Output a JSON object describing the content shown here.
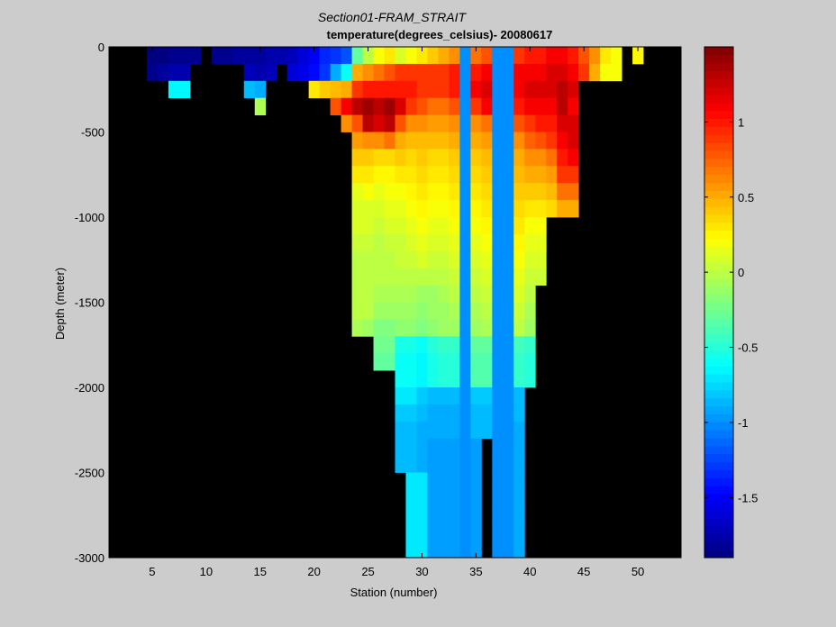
{
  "chart_data": [
    {
      "type": "heatmap",
      "title": "Section01-FRAM_STRAIT",
      "subtitle": "temperature(degrees_celsius)- 20080617",
      "xlabel": "Station (number)",
      "ylabel": "Depth (meter)",
      "xlim": [
        1,
        54
      ],
      "ylim": [
        -3000,
        0
      ],
      "x_ticks": [
        5,
        10,
        15,
        20,
        25,
        30,
        35,
        40,
        45,
        50
      ],
      "y_ticks": [
        0,
        -500,
        -1000,
        -1500,
        -2000,
        -2500,
        -3000
      ],
      "x_tick_labels": [
        "5",
        "10",
        "15",
        "20",
        "25",
        "30",
        "35",
        "40",
        "45",
        "50"
      ],
      "y_tick_labels": [
        "0",
        "-500",
        "-1000",
        "-1500",
        "-2000",
        "-2500",
        "-3000"
      ],
      "background_color": "#000000",
      "cell_depth_step": 100,
      "colorscale": "jet",
      "note_units": "°C",
      "stations": [
        {
          "x": 5,
          "t": [
            -1.9,
            -1.85
          ]
        },
        {
          "x": 6,
          "t": [
            -1.9,
            -1.8
          ]
        },
        {
          "x": 7,
          "t": [
            -1.85,
            -1.75,
            -0.65
          ]
        },
        {
          "x": 8,
          "t": [
            -1.85,
            -1.75,
            -0.65
          ]
        },
        {
          "x": 9,
          "t": [
            -1.85
          ]
        },
        {
          "x": 11,
          "t": [
            -1.85
          ]
        },
        {
          "x": 12,
          "t": [
            -1.85
          ]
        },
        {
          "x": 13,
          "t": [
            -1.8
          ]
        },
        {
          "x": 14,
          "t": [
            -1.8,
            -1.7,
            -0.85
          ]
        },
        {
          "x": 15,
          "t": [
            -1.8,
            -1.75,
            -0.9,
            -0.05
          ]
        },
        {
          "x": 16,
          "t": [
            -1.75,
            -1.7
          ]
        },
        {
          "x": 17,
          "t": [
            -1.75
          ]
        },
        {
          "x": 18,
          "t": [
            -1.7,
            -1.6
          ]
        },
        {
          "x": 19,
          "t": [
            -1.6,
            -1.55
          ]
        },
        {
          "x": 20,
          "t": [
            -1.5,
            -1.45,
            0.3
          ]
        },
        {
          "x": 21,
          "t": [
            -1.35,
            -1.3,
            0.4
          ]
        },
        {
          "x": 22,
          "t": [
            -1.3,
            -0.9,
            0.45,
            0.8
          ]
        },
        {
          "x": 23,
          "t": [
            -1.2,
            -0.6,
            0.5,
            1.1,
            0.6
          ]
        },
        {
          "x": 24,
          "t": [
            -0.3,
            0.5,
            0.9,
            1.3,
            0.8,
            0.55,
            0.4,
            0.3,
            0.15,
            0.1,
            0.1,
            0.05,
            0.0,
            0.0,
            0.0,
            0.0,
            -0.05
          ]
        },
        {
          "x": 25,
          "t": [
            0.0,
            0.6,
            1.0,
            1.4,
            1.3,
            0.6,
            0.4,
            0.3,
            0.2,
            0.1,
            0.1,
            0.05,
            0.0,
            0.0,
            0.0,
            0.0,
            -0.1
          ]
        },
        {
          "x": 26,
          "t": [
            0.2,
            0.7,
            1.0,
            1.3,
            1.2,
            0.6,
            0.35,
            0.25,
            0.15,
            0.1,
            0.05,
            0.0,
            0.0,
            0.0,
            -0.05,
            -0.1,
            -0.2,
            -0.25,
            -0.3
          ]
        },
        {
          "x": 27,
          "t": [
            0.3,
            0.8,
            1.0,
            1.4,
            1.3,
            0.7,
            0.35,
            0.25,
            0.2,
            0.15,
            0.1,
            0.05,
            0.0,
            0.0,
            -0.05,
            -0.1,
            -0.2,
            -0.25,
            -0.3
          ]
        },
        {
          "x": 28,
          "t": [
            0.1,
            0.9,
            1.0,
            1.2,
            0.8,
            0.5,
            0.4,
            0.3,
            0.2,
            0.15,
            0.1,
            0.05,
            0.05,
            0.0,
            -0.05,
            -0.1,
            -0.15,
            -0.55,
            -0.6,
            -0.6,
            -0.7,
            -0.8,
            -0.85,
            -0.85,
            -0.85
          ]
        },
        {
          "x": 29,
          "t": [
            0.2,
            0.9,
            1.0,
            0.9,
            0.6,
            0.45,
            0.35,
            0.3,
            0.25,
            0.2,
            0.15,
            0.1,
            0.05,
            0.0,
            -0.05,
            -0.1,
            -0.15,
            -0.55,
            -0.6,
            -0.6,
            -0.7,
            -0.8,
            -0.85,
            -0.85,
            -0.85,
            -0.7,
            -0.7,
            -0.7,
            -0.7,
            -0.7
          ]
        },
        {
          "x": 30,
          "t": [
            0.3,
            0.9,
            0.9,
            0.8,
            0.6,
            0.45,
            0.4,
            0.35,
            0.3,
            0.25,
            0.2,
            0.15,
            0.1,
            0.0,
            -0.1,
            -0.15,
            -0.2,
            -0.6,
            -0.65,
            -0.65,
            -0.8,
            -0.85,
            -0.9,
            -0.9,
            -0.9,
            -0.7,
            -0.7,
            -0.7,
            -0.7,
            -0.7
          ]
        },
        {
          "x": 31,
          "t": [
            0.4,
            0.9,
            0.9,
            0.7,
            0.55,
            0.45,
            0.35,
            0.3,
            0.25,
            0.2,
            0.15,
            0.1,
            0.05,
            0.0,
            -0.1,
            -0.1,
            -0.15,
            -0.5,
            -0.55,
            -0.55,
            -0.85,
            -0.9,
            -0.9,
            -0.95,
            -0.95,
            -0.95,
            -0.95,
            -0.95,
            -0.95,
            -0.95
          ]
        },
        {
          "x": 32,
          "t": [
            0.5,
            0.9,
            0.9,
            0.7,
            0.55,
            0.45,
            0.35,
            0.3,
            0.25,
            0.2,
            0.15,
            0.1,
            0.05,
            0.0,
            -0.05,
            -0.1,
            -0.1,
            -0.45,
            -0.5,
            -0.5,
            -0.85,
            -0.9,
            -0.9,
            -0.95,
            -0.95,
            -0.95,
            -0.95,
            -0.95,
            -0.95,
            -0.95
          ]
        },
        {
          "x": 33,
          "t": [
            0.6,
            1.0,
            1.0,
            0.8,
            0.6,
            0.5,
            0.4,
            0.35,
            0.3,
            0.25,
            0.2,
            0.15,
            0.1,
            0.05,
            0.0,
            -0.05,
            -0.1,
            -0.45,
            -0.5,
            -0.5,
            -0.85,
            -0.9,
            -0.9,
            -0.95,
            -0.95,
            -0.95,
            -0.95,
            -0.95,
            -0.95,
            -0.95
          ]
        },
        {
          "x": 34,
          "t": [
            -1.0,
            -1.0,
            -1.0,
            -1.0,
            -1.0,
            -1.0,
            -1.0,
            -1.0,
            -1.0,
            -1.0,
            -1.0,
            -1.0,
            -1.0,
            -1.0,
            -1.0,
            -1.0,
            -1.0,
            -1.0,
            -1.0,
            -1.0,
            -1.0,
            -1.0,
            -1.0,
            -1.0,
            -1.0,
            -1.0,
            -1.0,
            -1.0,
            -1.0,
            -1.0
          ]
        },
        {
          "x": 35,
          "t": [
            0.7,
            1.0,
            1.1,
            0.9,
            0.6,
            0.5,
            0.4,
            0.35,
            0.3,
            0.25,
            0.2,
            0.15,
            0.1,
            0.05,
            0.0,
            -0.05,
            -0.1,
            -0.3,
            -0.35,
            -0.35,
            -0.8,
            -0.85,
            -0.85,
            -0.95,
            -0.95,
            -0.95,
            -0.95,
            -0.95,
            -0.95,
            -0.95
          ]
        },
        {
          "x": 36,
          "t": [
            0.8,
            1.1,
            1.2,
            1.1,
            0.7,
            0.55,
            0.45,
            0.4,
            0.35,
            0.3,
            0.25,
            0.2,
            0.15,
            0.1,
            0.05,
            0.0,
            -0.05,
            -0.3,
            -0.35,
            -0.35,
            -0.8,
            -0.85,
            -0.85
          ]
        },
        {
          "x": 37,
          "t": [
            -1.0,
            -1.0,
            -1.0,
            -1.0,
            -1.0,
            -1.0,
            -1.0,
            -1.0,
            -1.0,
            -1.0,
            -1.0,
            -1.0,
            -1.0,
            -1.0,
            -1.0,
            -1.0,
            -1.0,
            -1.0,
            -1.0,
            -1.0,
            -1.0,
            -1.0,
            -1.0,
            -1.0,
            -1.0,
            -1.0,
            -1.0,
            -1.0,
            -1.0,
            -1.0
          ]
        },
        {
          "x": 38,
          "t": [
            -1.0,
            -1.0,
            -1.0,
            -1.0,
            -1.0,
            -1.0,
            -1.0,
            -1.0,
            -1.0,
            -1.0,
            -1.0,
            -1.0,
            -1.0,
            -1.0,
            -1.0,
            -1.0,
            -1.0,
            -1.0,
            -1.0,
            -1.0,
            -1.0,
            -1.0,
            -1.0,
            -1.0,
            -1.0,
            -1.0,
            -1.0,
            -1.0,
            -1.0,
            -1.0
          ]
        },
        {
          "x": 39,
          "t": [
            0.9,
            1.1,
            1.1,
            1.0,
            0.8,
            0.6,
            0.5,
            0.45,
            0.4,
            0.35,
            0.3,
            0.25,
            0.2,
            0.15,
            0.1,
            0.05,
            0.0,
            -0.4,
            -0.45,
            -0.45,
            -0.85,
            -0.85,
            -0.9,
            -0.9,
            -0.9,
            -0.9,
            -0.9,
            -0.9,
            -0.9,
            -0.9
          ]
        },
        {
          "x": 40,
          "t": [
            1.0,
            1.1,
            1.2,
            1.1,
            0.9,
            0.75,
            0.6,
            0.5,
            0.4,
            0.3,
            0.2,
            0.15,
            0.1,
            0.05,
            0.0,
            -0.05,
            -0.1,
            -0.45,
            -0.5,
            -0.5
          ]
        },
        {
          "x": 41,
          "t": [
            1.0,
            1.1,
            1.2,
            1.1,
            1.0,
            0.8,
            0.6,
            0.5,
            0.4,
            0.3,
            0.2,
            0.15,
            0.1,
            0.05
          ]
        },
        {
          "x": 42,
          "t": [
            1.1,
            1.2,
            1.2,
            1.1,
            1.0,
            0.9,
            0.7,
            0.55,
            0.45,
            0.35
          ]
        },
        {
          "x": 43,
          "t": [
            1.1,
            1.2,
            1.3,
            1.3,
            1.2,
            1.1,
            1.0,
            0.9,
            0.7,
            0.5
          ]
        },
        {
          "x": 44,
          "t": [
            1.0,
            1.1,
            1.2,
            1.1,
            1.2,
            1.2,
            1.1,
            0.9,
            0.7,
            0.5
          ]
        },
        {
          "x": 45,
          "t": [
            0.8,
            0.9
          ]
        },
        {
          "x": 46,
          "t": [
            0.6,
            0.5
          ]
        },
        {
          "x": 47,
          "t": [
            0.3,
            0.2
          ]
        },
        {
          "x": 48,
          "t": [
            0.2,
            0.2
          ]
        },
        {
          "x": 50,
          "t": [
            0.25
          ]
        }
      ]
    },
    {
      "type": "heatmap",
      "colorbar": true,
      "clim": [
        -1.9,
        1.5
      ],
      "ticks": [
        1,
        0.5,
        0,
        -0.5,
        -1,
        -1.5
      ],
      "tick_labels": [
        "1",
        "0.5",
        "0",
        "-0.5",
        "-1",
        "-1.5"
      ],
      "levels": 64
    }
  ]
}
